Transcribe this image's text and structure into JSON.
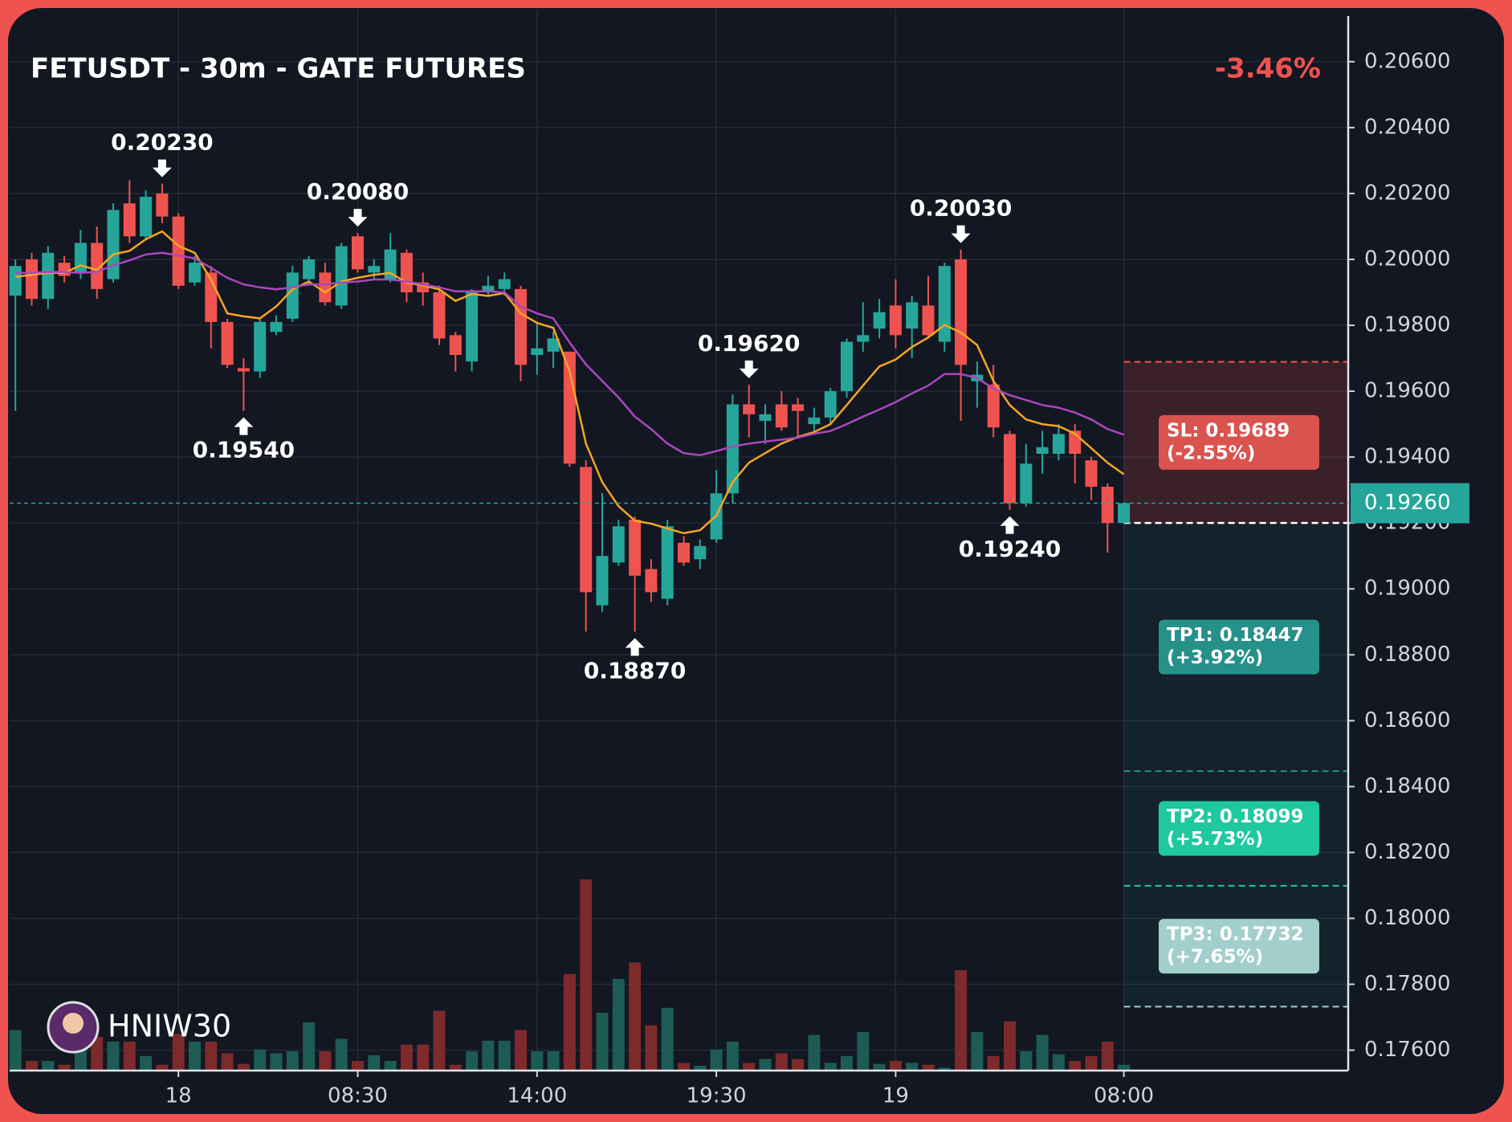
{
  "chart_data": {
    "type": "candlestick",
    "title": "FETUSDT - 30m - GATE FUTURES",
    "change": "-3.46%",
    "watermark": "HNIW30",
    "up_color": "#26a69a",
    "down_color": "#ef5350",
    "categories": [
      null,
      null,
      null,
      null,
      null,
      null,
      null,
      null,
      null,
      null,
      "18",
      null,
      null,
      null,
      null,
      null,
      null,
      null,
      null,
      null,
      null,
      "08:30",
      null,
      null,
      null,
      null,
      null,
      null,
      null,
      null,
      null,
      null,
      "14:00",
      null,
      null,
      null,
      null,
      null,
      null,
      null,
      null,
      null,
      null,
      "19:30",
      null,
      null,
      null,
      null,
      null,
      null,
      null,
      null,
      null,
      null,
      "19",
      null,
      null,
      null,
      null,
      null,
      null,
      null,
      null,
      null,
      null,
      null,
      null,
      null,
      "08:00"
    ],
    "ohlc": [
      [
        0.1989,
        0.2,
        0.1954,
        0.1998
      ],
      [
        0.2,
        0.2002,
        0.1986,
        0.1988
      ],
      [
        0.1988,
        0.2004,
        0.1985,
        0.2002
      ],
      [
        0.1999,
        0.2001,
        0.1993,
        0.1995
      ],
      [
        0.1996,
        0.2009,
        0.1994,
        0.2005
      ],
      [
        0.2005,
        0.201,
        0.1988,
        0.1991
      ],
      [
        0.1994,
        0.2017,
        0.1993,
        0.2015
      ],
      [
        0.2017,
        0.2024,
        0.2005,
        0.2007
      ],
      [
        0.2007,
        0.2021,
        0.2006,
        0.2019
      ],
      [
        0.202,
        0.2023,
        0.2011,
        0.2013
      ],
      [
        0.2013,
        0.2014,
        0.1991,
        0.1992
      ],
      [
        0.1993,
        0.2001,
        0.1992,
        0.1999
      ],
      [
        0.1996,
        0.1998,
        0.1973,
        0.1981
      ],
      [
        0.1981,
        0.1982,
        0.1967,
        0.1968
      ],
      [
        0.1967,
        0.197,
        0.1954,
        0.1966
      ],
      [
        0.1966,
        0.1982,
        0.1964,
        0.1981
      ],
      [
        0.1978,
        0.1983,
        0.1977,
        0.1981
      ],
      [
        0.1982,
        0.1998,
        0.1981,
        0.1996
      ],
      [
        0.1994,
        0.2001,
        0.1992,
        0.2
      ],
      [
        0.1996,
        0.1999,
        0.1986,
        0.1987
      ],
      [
        0.1986,
        0.2005,
        0.1985,
        0.2004
      ],
      [
        0.2007,
        0.2008,
        0.1996,
        0.1997
      ],
      [
        0.1996,
        0.2,
        0.1994,
        0.1998
      ],
      [
        0.1994,
        0.2008,
        0.1993,
        0.2003
      ],
      [
        0.2002,
        0.2003,
        0.1987,
        0.199
      ],
      [
        0.1993,
        0.1996,
        0.1986,
        0.199
      ],
      [
        0.199,
        0.1992,
        0.1974,
        0.1976
      ],
      [
        0.1977,
        0.1978,
        0.1966,
        0.1971
      ],
      [
        0.1969,
        0.1991,
        0.1966,
        0.199
      ],
      [
        0.199,
        0.1995,
        0.1989,
        0.1992
      ],
      [
        0.1991,
        0.1996,
        0.1989,
        0.1994
      ],
      [
        0.1991,
        0.1992,
        0.1963,
        0.1968
      ],
      [
        0.1971,
        0.1981,
        0.1965,
        0.1973
      ],
      [
        0.1972,
        0.1978,
        0.1967,
        0.1976
      ],
      [
        0.1972,
        0.1972,
        0.1937,
        0.1938
      ],
      [
        0.1937,
        0.1939,
        0.1887,
        0.1899
      ],
      [
        0.1895,
        0.1929,
        0.1893,
        0.191
      ],
      [
        0.1908,
        0.1921,
        0.1907,
        0.1919
      ],
      [
        0.1921,
        0.1922,
        0.1887,
        0.1904
      ],
      [
        0.1906,
        0.1909,
        0.1896,
        0.1899
      ],
      [
        0.1897,
        0.1921,
        0.1895,
        0.1919
      ],
      [
        0.1914,
        0.1916,
        0.1907,
        0.1908
      ],
      [
        0.1909,
        0.1915,
        0.1906,
        0.1913
      ],
      [
        0.1915,
        0.1936,
        0.1914,
        0.1929
      ],
      [
        0.1929,
        0.1959,
        0.1926,
        0.1956
      ],
      [
        0.1956,
        0.1962,
        0.1946,
        0.1953
      ],
      [
        0.1951,
        0.1956,
        0.1944,
        0.1953
      ],
      [
        0.1956,
        0.196,
        0.1948,
        0.1949
      ],
      [
        0.1956,
        0.1958,
        0.1946,
        0.1954
      ],
      [
        0.195,
        0.1955,
        0.1948,
        0.1952
      ],
      [
        0.1952,
        0.1961,
        0.195,
        0.196
      ],
      [
        0.196,
        0.1976,
        0.1958,
        0.1975
      ],
      [
        0.1975,
        0.1987,
        0.1972,
        0.1977
      ],
      [
        0.1979,
        0.1988,
        0.1976,
        0.1984
      ],
      [
        0.1986,
        0.1994,
        0.1973,
        0.1977
      ],
      [
        0.1979,
        0.1989,
        0.197,
        0.1987
      ],
      [
        0.1986,
        0.1995,
        0.1976,
        0.1977
      ],
      [
        0.1975,
        0.1999,
        0.1972,
        0.1998
      ],
      [
        0.2,
        0.2003,
        0.1951,
        0.1968
      ],
      [
        0.1963,
        0.1969,
        0.1955,
        0.1965
      ],
      [
        0.1962,
        0.1968,
        0.1946,
        0.1949
      ],
      [
        0.1947,
        0.1948,
        0.1924,
        0.1926
      ],
      [
        0.1926,
        0.1944,
        0.1925,
        0.1938
      ],
      [
        0.1941,
        0.1948,
        0.1935,
        0.1943
      ],
      [
        0.1941,
        0.195,
        0.1939,
        0.1947
      ],
      [
        0.1948,
        0.195,
        0.1932,
        0.1941
      ],
      [
        0.1939,
        0.194,
        0.1927,
        0.1931
      ],
      [
        0.1931,
        0.1932,
        0.1911,
        0.192
      ],
      [
        0.192,
        0.1926,
        0.192,
        0.1926
      ]
    ],
    "volume": [
      42,
      10,
      10,
      6,
      30,
      35,
      30,
      30,
      15,
      6,
      38,
      30,
      30,
      18,
      7,
      22,
      18,
      20,
      50,
      20,
      33,
      10,
      16,
      10,
      27,
      27,
      62,
      6,
      20,
      31,
      31,
      42,
      20,
      20,
      100,
      198,
      60,
      95,
      112,
      47,
      65,
      8,
      5,
      22,
      30,
      8,
      12,
      18,
      12,
      37,
      8,
      15,
      40,
      7,
      10,
      8,
      6,
      3,
      104,
      40,
      15,
      51,
      20,
      37,
      17,
      10,
      15,
      30,
      6
    ],
    "moving_averages": [
      {
        "color": "#f5a623",
        "values": [
          0.19947,
          0.19953,
          0.19959,
          0.19959,
          0.19982,
          0.19968,
          0.20015,
          0.20026,
          0.20061,
          0.20085,
          0.20041,
          0.2002,
          0.19939,
          0.19836,
          0.19827,
          0.19821,
          0.19857,
          0.19909,
          0.19933,
          0.199,
          0.19933,
          0.19944,
          0.19953,
          0.19959,
          0.1993,
          0.19921,
          0.19909,
          0.19874,
          0.19895,
          0.19889,
          0.19898,
          0.19836,
          0.19807,
          0.19792,
          0.1966,
          0.19441,
          0.19324,
          0.19251,
          0.19207,
          0.19198,
          0.19183,
          0.19169,
          0.19178,
          0.19222,
          0.19324,
          0.19383,
          0.19412,
          0.19441,
          0.19461,
          0.19476,
          0.195,
          0.19558,
          0.19617,
          0.19675,
          0.19696,
          0.19734,
          0.19763,
          0.19801,
          0.19778,
          0.1974,
          0.19631,
          0.19558,
          0.19514,
          0.195,
          0.19494,
          0.19471,
          0.19427,
          0.19383,
          0.19348
        ]
      },
      {
        "color": "#ab47bc",
        "values": [
          0.19959,
          0.19959,
          0.19962,
          0.19962,
          0.19959,
          0.19962,
          0.19982,
          0.19997,
          0.20015,
          0.2002,
          0.20012,
          0.20003,
          0.19974,
          0.19944,
          0.19924,
          0.19915,
          0.19909,
          0.19915,
          0.19924,
          0.19924,
          0.1993,
          0.19933,
          0.19939,
          0.19939,
          0.19933,
          0.19924,
          0.19915,
          0.19903,
          0.19903,
          0.19903,
          0.199,
          0.19857,
          0.19836,
          0.19821,
          0.19748,
          0.19681,
          0.19631,
          0.19581,
          0.19523,
          0.19485,
          0.19441,
          0.19412,
          0.19406,
          0.19418,
          0.19432,
          0.19441,
          0.19447,
          0.19453,
          0.19459,
          0.19471,
          0.19479,
          0.195,
          0.19523,
          0.19544,
          0.19567,
          0.19593,
          0.19617,
          0.19652,
          0.19652,
          0.1964,
          0.19608,
          0.19588,
          0.19573,
          0.19558,
          0.1955,
          0.19535,
          0.19514,
          0.19485,
          0.19468
        ]
      }
    ],
    "annotations": [
      {
        "index": 9,
        "value": 0.2023,
        "label": "0.20230",
        "kind": "high"
      },
      {
        "index": 14,
        "value": 0.1954,
        "label": "0.19540",
        "kind": "low"
      },
      {
        "index": 21,
        "value": 0.2008,
        "label": "0.20080",
        "kind": "high"
      },
      {
        "index": 38,
        "value": 0.1887,
        "label": "0.18870",
        "kind": "low"
      },
      {
        "index": 45,
        "value": 0.1962,
        "label": "0.19620",
        "kind": "high"
      },
      {
        "index": 58,
        "value": 0.2003,
        "label": "0.20030",
        "kind": "high"
      },
      {
        "index": 61,
        "value": 0.1924,
        "label": "0.19240",
        "kind": "low"
      }
    ],
    "last_price": {
      "value": 0.1926,
      "label": "0.19260"
    },
    "entry": 0.192,
    "stop_loss": {
      "value": 0.19689,
      "label": "SL: 0.19689",
      "change": "(-2.55%)",
      "color": "#d9534f"
    },
    "targets": [
      {
        "value": 0.18447,
        "label": "TP1: 0.18447",
        "change": "(+3.92%)",
        "color": "#26918a"
      },
      {
        "value": 0.18099,
        "label": "TP2: 0.18099",
        "change": "(+5.73%)",
        "color": "#1fc9a0"
      },
      {
        "value": 0.17732,
        "label": "TP3: 0.17732",
        "change": "(+7.65%)",
        "color": "#a2cfcc"
      }
    ],
    "ylim": [
      0.17538,
      0.20758
    ],
    "yticks": [
      {
        "value": 0.206,
        "label": "0.20600"
      },
      {
        "value": 0.204,
        "label": "0.20400"
      },
      {
        "value": 0.202,
        "label": "0.20200"
      },
      {
        "value": 0.2,
        "label": "0.20000"
      },
      {
        "value": 0.198,
        "label": "0.19800"
      },
      {
        "value": 0.196,
        "label": "0.19600"
      },
      {
        "value": 0.194,
        "label": "0.19400"
      },
      {
        "value": 0.192,
        "label": "0.19200"
      },
      {
        "value": 0.19,
        "label": "0.19000"
      },
      {
        "value": 0.188,
        "label": "0.18800"
      },
      {
        "value": 0.186,
        "label": "0.18600"
      },
      {
        "value": 0.184,
        "label": "0.18400"
      },
      {
        "value": 0.182,
        "label": "0.18200"
      },
      {
        "value": 0.18,
        "label": "0.18000"
      },
      {
        "value": 0.178,
        "label": "0.17800"
      },
      {
        "value": 0.176,
        "label": "0.17600"
      }
    ],
    "grid": true
  }
}
